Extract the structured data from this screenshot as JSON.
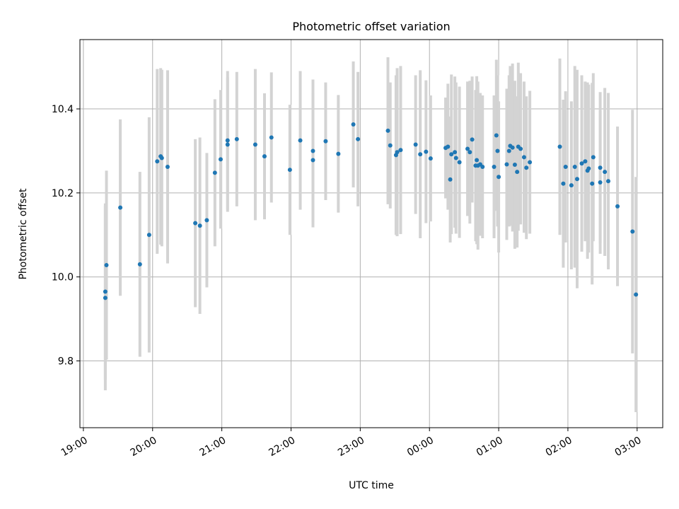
{
  "chart_data": {
    "type": "scatter",
    "title": "Photometric offset variation",
    "xlabel": "UTC time",
    "ylabel": "Photometric offset",
    "x_ticks": [
      "19:00",
      "20:00",
      "21:00",
      "22:00",
      "23:00",
      "00:00",
      "01:00",
      "02:00",
      "03:00"
    ],
    "x_tick_hours": [
      19,
      20,
      21,
      22,
      23,
      24,
      25,
      26,
      27
    ],
    "y_ticks": [
      9.8,
      10.0,
      10.2,
      10.4
    ],
    "y_tick_labels": [
      "9.8",
      "10.0",
      "10.2",
      "10.4"
    ],
    "xlim_hours": [
      18.95,
      27.37
    ],
    "ylim": [
      9.641,
      10.565
    ],
    "grid": true,
    "colors": {
      "point": "#1f77b4",
      "errorbar": "#d3d3d3",
      "grid": "#b0b0b0"
    },
    "series": [
      {
        "points": [
          [
            "19:19",
            9.95,
            0.22
          ],
          [
            "19:19",
            9.965,
            0.21
          ],
          [
            "19:20",
            10.028,
            0.225
          ],
          [
            "19:32",
            10.165,
            0.21
          ],
          [
            "19:49",
            10.03,
            0.22
          ],
          [
            "19:57",
            10.1,
            0.28
          ],
          [
            "20:04",
            10.275,
            0.22
          ],
          [
            "20:07",
            10.287,
            0.21
          ],
          [
            "20:08",
            10.283,
            0.21
          ],
          [
            "20:13",
            10.262,
            0.23
          ],
          [
            "20:37",
            10.128,
            0.2
          ],
          [
            "20:41",
            10.122,
            0.21
          ],
          [
            "20:47",
            10.135,
            0.16
          ],
          [
            "20:54",
            10.248,
            0.175
          ],
          [
            "20:59",
            10.28,
            0.165
          ],
          [
            "21:05",
            10.315,
            0.16
          ],
          [
            "21:05",
            10.325,
            0.165
          ],
          [
            "21:13",
            10.328,
            0.16
          ],
          [
            "21:29",
            10.315,
            0.18
          ],
          [
            "21:37",
            10.287,
            0.15
          ],
          [
            "21:43",
            10.332,
            0.155
          ],
          [
            "21:59",
            10.255,
            0.155
          ],
          [
            "22:08",
            10.325,
            0.165
          ],
          [
            "22:19",
            10.3,
            0.17
          ],
          [
            "22:19",
            10.278,
            0.16
          ],
          [
            "22:30",
            10.323,
            0.14
          ],
          [
            "22:41",
            10.293,
            0.14
          ],
          [
            "22:54",
            10.363,
            0.15
          ],
          [
            "22:58",
            10.328,
            0.16
          ],
          [
            "23:24",
            10.348,
            0.175
          ],
          [
            "23:26",
            10.313,
            0.15
          ],
          [
            "23:31",
            10.29,
            0.19
          ],
          [
            "23:32",
            10.297,
            0.2
          ],
          [
            "23:35",
            10.302,
            0.2
          ],
          [
            "23:48",
            10.315,
            0.165
          ],
          [
            "23:52",
            10.292,
            0.2
          ],
          [
            "23:57",
            10.298,
            0.17
          ],
          [
            "00:01",
            10.282,
            0.15
          ],
          [
            "00:14",
            10.307,
            0.12
          ],
          [
            "00:16",
            10.31,
            0.15
          ],
          [
            "00:18",
            10.232,
            0.15
          ],
          [
            "00:19",
            10.292,
            0.19
          ],
          [
            "00:22",
            10.297,
            0.18
          ],
          [
            "00:23",
            10.283,
            0.18
          ],
          [
            "00:26",
            10.273,
            0.18
          ],
          [
            "00:33",
            10.305,
            0.16
          ],
          [
            "00:35",
            10.297,
            0.17
          ],
          [
            "00:37",
            10.327,
            0.15
          ],
          [
            "00:40",
            10.265,
            0.18
          ],
          [
            "00:41",
            10.278,
            0.2
          ],
          [
            "00:42",
            10.265,
            0.2
          ],
          [
            "00:44",
            10.268,
            0.17
          ],
          [
            "00:46",
            10.262,
            0.17
          ],
          [
            "00:56",
            10.262,
            0.17
          ],
          [
            "00:58",
            10.337,
            0.18
          ],
          [
            "00:59",
            10.3,
            0.18
          ],
          [
            "01:00",
            10.238,
            0.18
          ],
          [
            "01:07",
            10.268,
            0.18
          ],
          [
            "01:09",
            10.3,
            0.18
          ],
          [
            "01:10",
            10.312,
            0.19
          ],
          [
            "01:12",
            10.308,
            0.2
          ],
          [
            "01:14",
            10.267,
            0.2
          ],
          [
            "01:16",
            10.25,
            0.18
          ],
          [
            "01:17",
            10.31,
            0.2
          ],
          [
            "01:19",
            10.305,
            0.18
          ],
          [
            "01:22",
            10.285,
            0.18
          ],
          [
            "01:24",
            10.26,
            0.17
          ],
          [
            "01:27",
            10.273,
            0.17
          ],
          [
            "01:53",
            10.31,
            0.21
          ],
          [
            "01:56",
            10.222,
            0.2
          ],
          [
            "01:58",
            10.262,
            0.18
          ],
          [
            "02:03",
            10.218,
            0.2
          ],
          [
            "02:06",
            10.262,
            0.24
          ],
          [
            "02:08",
            10.233,
            0.26
          ],
          [
            "02:12",
            10.27,
            0.21
          ],
          [
            "02:15",
            10.275,
            0.19
          ],
          [
            "02:17",
            10.253,
            0.21
          ],
          [
            "02:18",
            10.258,
            0.2
          ],
          [
            "02:21",
            10.222,
            0.24
          ],
          [
            "02:22",
            10.285,
            0.2
          ],
          [
            "02:28",
            10.225,
            0.17
          ],
          [
            "02:28",
            10.26,
            0.18
          ],
          [
            "02:32",
            10.25,
            0.2
          ],
          [
            "02:35",
            10.228,
            0.21
          ],
          [
            "02:43",
            10.168,
            0.19
          ],
          [
            "02:56",
            10.108,
            0.29
          ],
          [
            "02:59",
            9.958,
            0.28
          ]
        ]
      }
    ]
  }
}
